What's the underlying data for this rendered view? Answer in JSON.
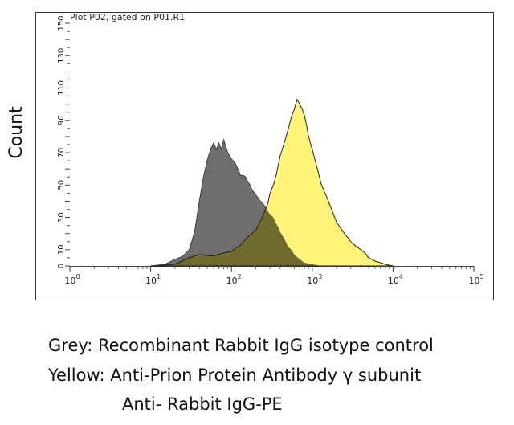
{
  "chart_data": {
    "type": "area",
    "title": "Plot P02, gated on P01.R1",
    "ylabel": "Count",
    "xlabel": "",
    "x_scale": "log",
    "xlim": [
      1,
      100000
    ],
    "ylim": [
      0,
      150
    ],
    "x_ticks": [
      {
        "value": 1,
        "base": "10",
        "exp": "0"
      },
      {
        "value": 10,
        "base": "10",
        "exp": "1"
      },
      {
        "value": 100,
        "base": "10",
        "exp": "2"
      },
      {
        "value": 1000,
        "base": "10",
        "exp": "3"
      },
      {
        "value": 10000,
        "base": "10",
        "exp": "4"
      },
      {
        "value": 100000,
        "base": "10",
        "exp": "5"
      }
    ],
    "y_ticks": [
      0,
      10,
      30,
      50,
      70,
      90,
      110,
      130,
      150
    ],
    "colors": {
      "grey": "#6e6e6e",
      "yellow": "#fff37a",
      "overlap": "#6f6a2e"
    },
    "series": [
      {
        "color": "grey",
        "points": [
          [
            10,
            0
          ],
          [
            15,
            1
          ],
          [
            20,
            4
          ],
          [
            25,
            6
          ],
          [
            30,
            10
          ],
          [
            35,
            21
          ],
          [
            40,
            40
          ],
          [
            45,
            55
          ],
          [
            50,
            65
          ],
          [
            55,
            72
          ],
          [
            60,
            76
          ],
          [
            65,
            72
          ],
          [
            70,
            76
          ],
          [
            75,
            72
          ],
          [
            80,
            78
          ],
          [
            85,
            74
          ],
          [
            90,
            70
          ],
          [
            95,
            68
          ],
          [
            100,
            66
          ],
          [
            110,
            64
          ],
          [
            120,
            60
          ],
          [
            130,
            56
          ],
          [
            140,
            56
          ],
          [
            150,
            55
          ],
          [
            160,
            52
          ],
          [
            170,
            50
          ],
          [
            180,
            47
          ],
          [
            200,
            44
          ],
          [
            220,
            41
          ],
          [
            250,
            38
          ],
          [
            280,
            34
          ],
          [
            300,
            32
          ],
          [
            330,
            30
          ],
          [
            350,
            27
          ],
          [
            380,
            24
          ],
          [
            400,
            21
          ],
          [
            450,
            17
          ],
          [
            500,
            12
          ],
          [
            550,
            10
          ],
          [
            600,
            7
          ],
          [
            700,
            4
          ],
          [
            800,
            2
          ],
          [
            1000,
            1
          ],
          [
            1300,
            0
          ]
        ]
      },
      {
        "color": "yellow",
        "points": [
          [
            10,
            0
          ],
          [
            20,
            1
          ],
          [
            30,
            5
          ],
          [
            40,
            7
          ],
          [
            60,
            6
          ],
          [
            80,
            8
          ],
          [
            100,
            9
          ],
          [
            130,
            13
          ],
          [
            160,
            18
          ],
          [
            200,
            22
          ],
          [
            250,
            32
          ],
          [
            280,
            38
          ],
          [
            300,
            45
          ],
          [
            330,
            50
          ],
          [
            360,
            57
          ],
          [
            400,
            68
          ],
          [
            450,
            76
          ],
          [
            500,
            84
          ],
          [
            550,
            92
          ],
          [
            600,
            97
          ],
          [
            650,
            103
          ],
          [
            700,
            100
          ],
          [
            750,
            97
          ],
          [
            800,
            93
          ],
          [
            850,
            87
          ],
          [
            900,
            80
          ],
          [
            1000,
            72
          ],
          [
            1100,
            64
          ],
          [
            1200,
            57
          ],
          [
            1300,
            50
          ],
          [
            1500,
            43
          ],
          [
            1700,
            36
          ],
          [
            2000,
            27
          ],
          [
            2500,
            20
          ],
          [
            3000,
            15
          ],
          [
            3500,
            12
          ],
          [
            4000,
            10
          ],
          [
            4500,
            8
          ],
          [
            5000,
            5
          ],
          [
            6000,
            3
          ],
          [
            7000,
            2
          ],
          [
            8000,
            1
          ],
          [
            10000,
            0
          ]
        ]
      }
    ]
  },
  "caption": {
    "line1": "Grey: Recombinant Rabbit IgG isotype control",
    "line2": "Yellow: Anti-Prion Protein Antibody γ subunit",
    "line3": "Anti- Rabbit IgG-PE"
  }
}
